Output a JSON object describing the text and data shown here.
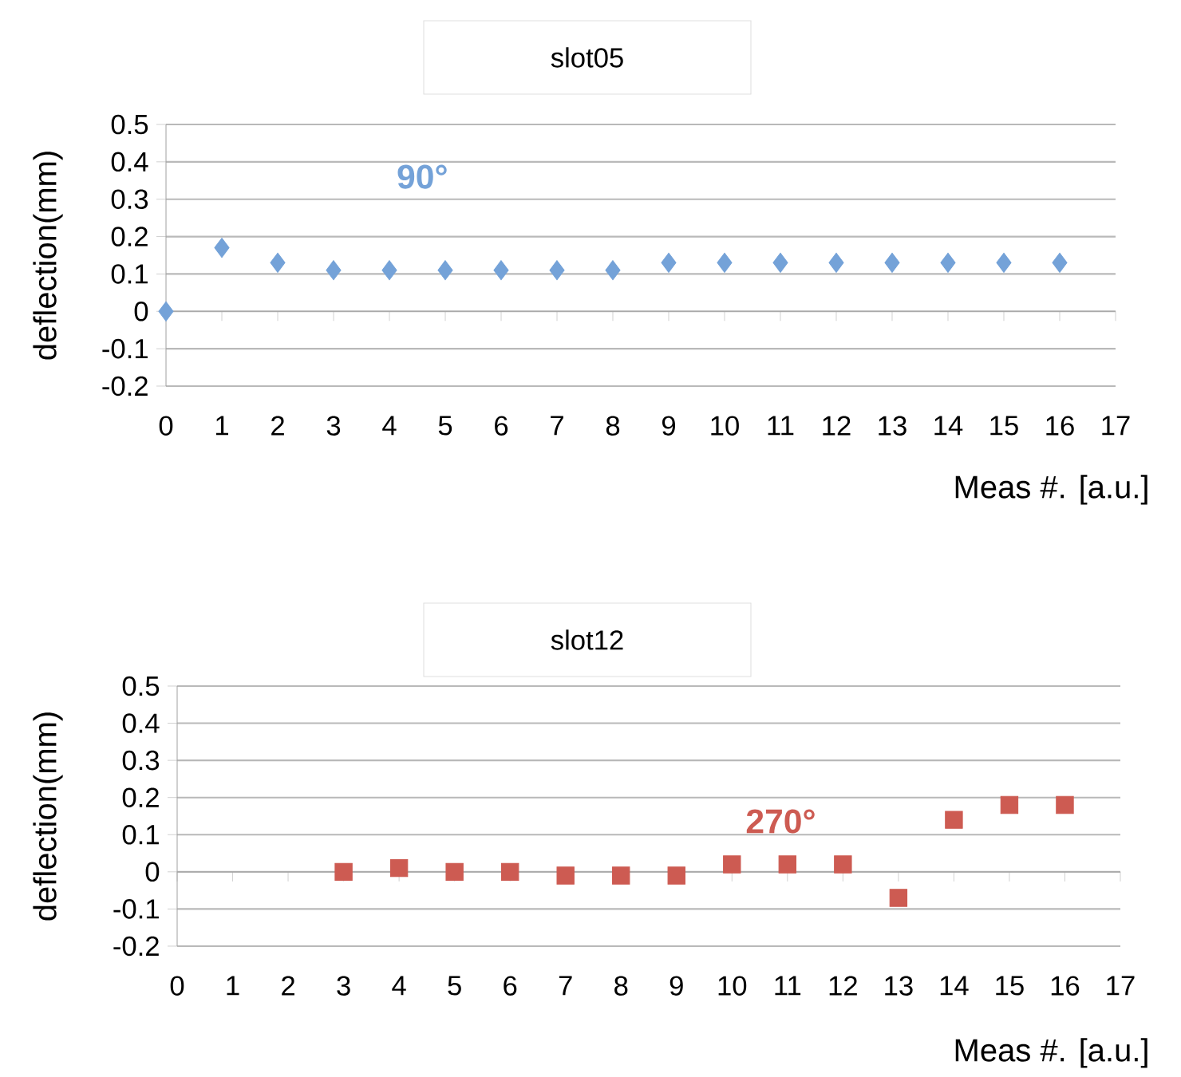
{
  "chart_data": [
    {
      "type": "scatter",
      "title": "slot05",
      "xlabel": "Meas #. [a.u.]",
      "ylabel": "deflection(mm)",
      "x": [
        0,
        1,
        2,
        3,
        4,
        5,
        6,
        7,
        8,
        9,
        10,
        11,
        12,
        13,
        14,
        15,
        16
      ],
      "series": [
        {
          "name": "90°",
          "color": "#74a2d8",
          "values": [
            0,
            0.17,
            0.13,
            0.11,
            0.11,
            0.11,
            0.11,
            0.11,
            0.11,
            0.13,
            0.13,
            0.13,
            0.13,
            0.13,
            0.13,
            0.13,
            0.13
          ]
        }
      ],
      "marker": "diamond",
      "grid": "y",
      "xlim": [
        0,
        17
      ],
      "ylim": [
        -0.2,
        0.5
      ],
      "xticks": [
        0,
        1,
        2,
        3,
        4,
        5,
        6,
        7,
        8,
        9,
        10,
        11,
        12,
        13,
        14,
        15,
        16,
        17
      ],
      "yticks": [
        -0.2,
        -0.1,
        0,
        0.1,
        0.2,
        0.3,
        0.4,
        0.5
      ]
    },
    {
      "type": "scatter",
      "title": "slot12",
      "xlabel": "Meas #. [a.u.]",
      "ylabel": "deflection(mm)",
      "x": [
        3,
        4,
        5,
        6,
        7,
        8,
        9,
        10,
        11,
        12,
        13,
        14,
        15,
        16
      ],
      "series": [
        {
          "name": "270°",
          "color": "#cd5b52",
          "values": [
            0,
            0.01,
            0.0,
            0.0,
            -0.01,
            -0.01,
            -0.01,
            0.02,
            0.02,
            0.02,
            -0.07,
            0.14,
            0.18,
            0.18
          ]
        }
      ],
      "marker": "square",
      "grid": "y",
      "xlim": [
        0,
        17
      ],
      "ylim": [
        -0.2,
        0.5
      ],
      "xticks": [
        0,
        1,
        2,
        3,
        4,
        5,
        6,
        7,
        8,
        9,
        10,
        11,
        12,
        13,
        14,
        15,
        16,
        17
      ],
      "yticks": [
        -0.2,
        -0.1,
        0,
        0.1,
        0.2,
        0.3,
        0.4,
        0.5
      ]
    }
  ]
}
